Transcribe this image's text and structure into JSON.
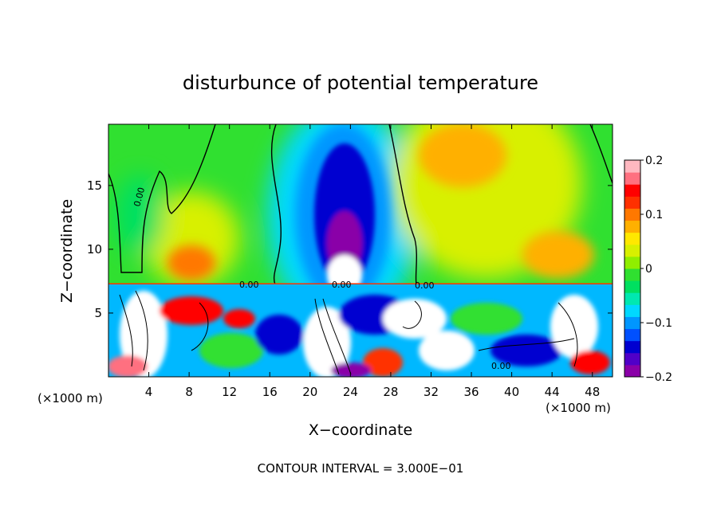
{
  "chart_data": {
    "type": "heatmap",
    "title": "disturbunce of potential temperature",
    "xlabel": "X−coordinate",
    "ylabel": "Z−coordinate",
    "x_unit_left": "(×1000 m)",
    "x_unit_right": "(×1000 m)",
    "footer": "CONTOUR INTERVAL = 3.000E−01",
    "xlim": [
      0,
      50
    ],
    "ylim": [
      0,
      19.8
    ],
    "x_ticks": [
      4,
      8,
      12,
      16,
      20,
      24,
      28,
      32,
      36,
      40,
      44,
      48
    ],
    "x_tick_labels": [
      "4",
      "8",
      "12",
      "16",
      "20",
      "24",
      "28",
      "32",
      "36",
      "40",
      "44",
      "48"
    ],
    "y_ticks": [
      5,
      10,
      15
    ],
    "y_tick_labels": [
      "5",
      "10",
      "15"
    ],
    "colorbar": {
      "range": [
        -0.2,
        0.2
      ],
      "tick_values": [
        0.2,
        0.1,
        0,
        -0.1,
        -0.2
      ],
      "tick_labels": [
        "0.2",
        "0.1",
        "0",
        "−0.1",
        "−0.2"
      ],
      "colors": [
        "#8a00a8",
        "#5000c8",
        "#0000d0",
        "#0050ff",
        "#0096ff",
        "#00d8ff",
        "#00e8b0",
        "#00e060",
        "#30e030",
        "#90ee00",
        "#d8f000",
        "#ffe800",
        "#ffb000",
        "#ff7800",
        "#ff3000",
        "#ff0000",
        "#ff7080",
        "#ffb8c0"
      ]
    },
    "contour_labels": [
      {
        "text": "0.00",
        "x": 3.0,
        "y": 14.5
      },
      {
        "text": "0.00",
        "x": 14.8,
        "y": 7.3
      },
      {
        "text": "0.00",
        "x": 23.3,
        "y": 7.3
      },
      {
        "text": "0.00",
        "x": 31.0,
        "y": 7.2
      },
      {
        "text": "0.00",
        "x": 39.5,
        "y": 0.9
      }
    ],
    "features": [
      {
        "name": "upper negative anomaly",
        "x": 23.5,
        "z": 12,
        "sign": "negative"
      },
      {
        "name": "upper positive anomaly west",
        "x": 8,
        "z": 9,
        "sign": "positive"
      },
      {
        "name": "upper positive anomaly east",
        "x": 44,
        "z": 9,
        "sign": "positive"
      },
      {
        "name": "inversion layer",
        "z": 7.3
      },
      {
        "name": "turbulent lower layer",
        "z_range": [
          0,
          7
        ]
      }
    ]
  }
}
